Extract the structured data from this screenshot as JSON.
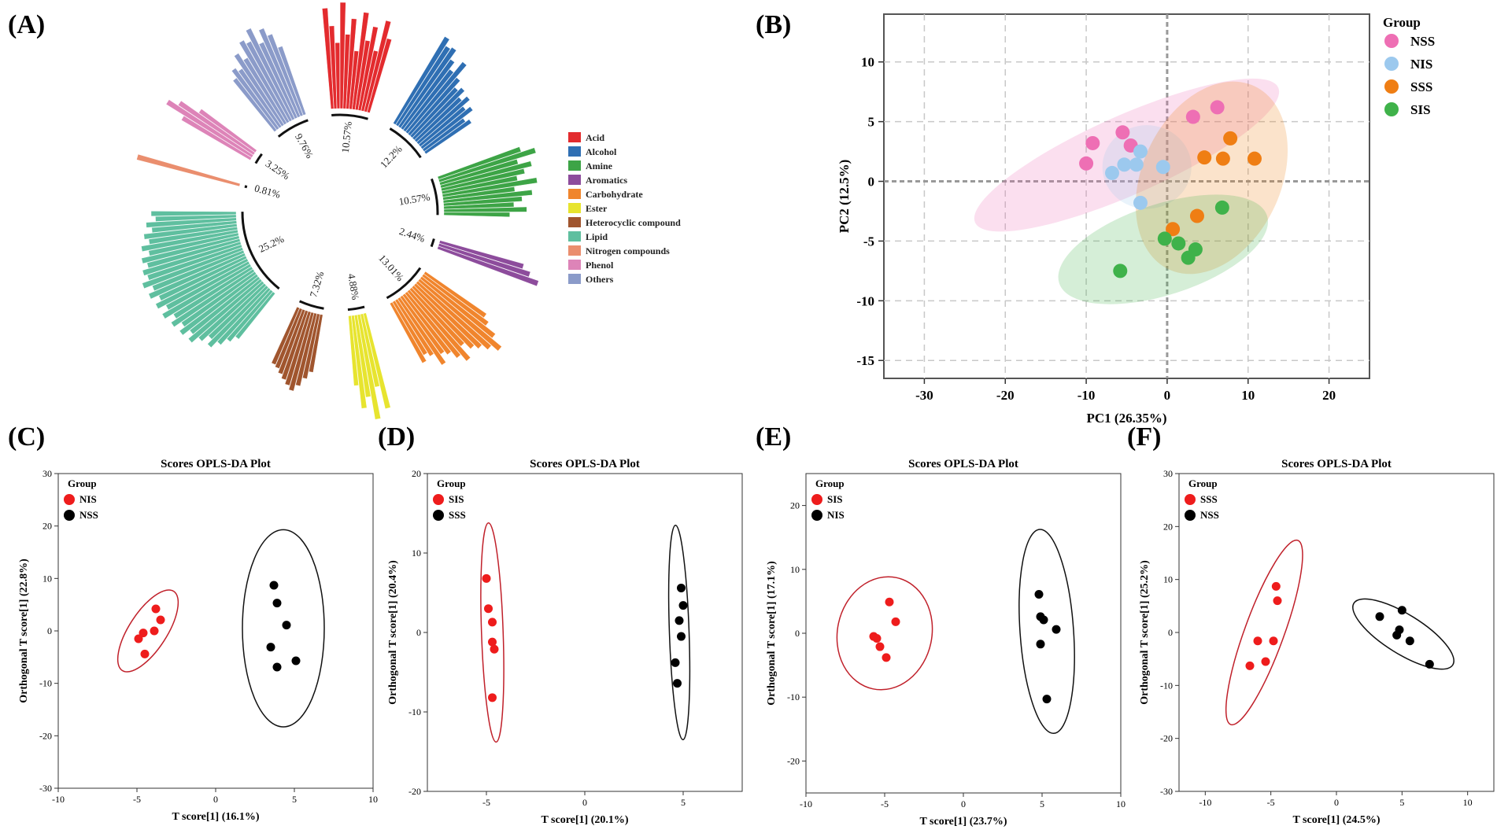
{
  "figure": {
    "panel_labels": [
      "(A)",
      "(B)",
      "(C)",
      "(D)",
      "(E)",
      "(F)"
    ]
  },
  "chart_data": [
    {
      "panel": "(A)",
      "type": "bar",
      "subtype": "circular-bar",
      "legend": [
        "Acid",
        "Alcohol",
        "Amine",
        "Aromatics",
        "Carbohydrate",
        "Ester",
        "Heterocyclic compound",
        "Lipid",
        "Nitrogen compounds",
        "Phenol",
        "Others"
      ],
      "categories": [
        {
          "name": "Acid",
          "percent": "10.57%",
          "color": "#e32b2e",
          "values": [
            0.95,
            0.78,
            0.62,
            1.0,
            0.7,
            0.85,
            0.55,
            0.92,
            0.66,
            0.8,
            0.58,
            0.88,
            0.72
          ]
        },
        {
          "name": "Alcohol",
          "percent": "12.2%",
          "color": "#2f6fb3",
          "values": [
            0.95,
            0.88,
            0.9,
            0.8,
            0.72,
            0.85,
            0.7,
            0.62,
            0.66,
            0.58,
            0.64,
            0.55,
            0.6,
            0.48,
            0.52
          ]
        },
        {
          "name": "Amine",
          "percent": "10.57%",
          "color": "#3da446",
          "values": [
            0.82,
            0.95,
            0.76,
            0.88,
            0.8,
            0.72,
            0.9,
            0.68,
            0.84,
            0.74,
            0.66,
            0.78,
            0.62
          ]
        },
        {
          "name": "Aromatics",
          "percent": "2.44%",
          "color": "#8d4c9c",
          "values": [
            0.82,
            0.9,
            1.0
          ]
        },
        {
          "name": "Carbohydrate",
          "percent": "13.01%",
          "color": "#f0852d",
          "values": [
            0.7,
            0.76,
            0.88,
            1.0,
            0.92,
            0.85,
            0.8,
            0.72,
            0.86,
            0.78,
            0.7,
            0.66,
            0.75,
            0.62,
            0.58,
            0.64
          ]
        },
        {
          "name": "Ester",
          "percent": "4.88%",
          "color": "#e7e42f",
          "values": [
            0.92,
            0.7,
            1.0,
            0.78,
            0.88,
            0.66
          ]
        },
        {
          "name": "Heterocyclic compound",
          "percent": "7.32%",
          "color": "#a0552e",
          "values": [
            0.55,
            0.62,
            0.7,
            0.76,
            0.72,
            0.68,
            0.64,
            0.6,
            0.58
          ]
        },
        {
          "name": "Lipid",
          "percent": "25.2%",
          "color": "#5fbf9f",
          "values": [
            0.55,
            0.62,
            0.7,
            0.78,
            0.72,
            0.8,
            0.88,
            0.82,
            0.9,
            0.84,
            0.92,
            0.86,
            0.95,
            0.88,
            0.96,
            0.9,
            0.98,
            0.92,
            1.0,
            0.93,
            0.96,
            0.9,
            0.94,
            0.86,
            0.92,
            0.84,
            0.88,
            0.8,
            0.85,
            0.76,
            0.8
          ]
        },
        {
          "name": "Nitrogen compounds",
          "percent": "0.81%",
          "color": "#ea8e6e",
          "values": [
            1.0
          ]
        },
        {
          "name": "Phenol",
          "percent": "3.25%",
          "color": "#dd84b8",
          "values": [
            0.75,
            0.95,
            0.85,
            0.65
          ]
        },
        {
          "name": "Others",
          "percent": "9.76%",
          "color": "#8b9bc9",
          "values": [
            0.62,
            0.7,
            0.66,
            0.8,
            0.72,
            0.88,
            0.84,
            0.95,
            0.78,
            0.9,
            0.82,
            0.68
          ]
        }
      ]
    },
    {
      "panel": "(B)",
      "type": "scatter",
      "xlabel": "PC1 (26.35%)",
      "ylabel": "PC2 (12.5%)",
      "xlim": [
        -35,
        25
      ],
      "ylim": [
        -16.5,
        14
      ],
      "xticks": [
        -30,
        -20,
        -10,
        0,
        10,
        20
      ],
      "yticks": [
        10,
        5,
        0,
        -5,
        -10,
        -15
      ],
      "legend_title": "Group",
      "series": [
        {
          "name": "NSS",
          "color": "#ee6fb4",
          "points": [
            [
              -10,
              1.5
            ],
            [
              -9.2,
              3.2
            ],
            [
              -5.5,
              4.1
            ],
            [
              -4.5,
              3.0
            ],
            [
              3.2,
              5.4
            ],
            [
              6.2,
              6.2
            ]
          ],
          "ellipse": {
            "cx": -5,
            "cy": 2.2,
            "rx": 20.5,
            "ry": 3.3,
            "angle_deg": 24
          }
        },
        {
          "name": "NIS",
          "color": "#9cc9ee",
          "points": [
            [
              -6.8,
              0.7
            ],
            [
              -5.3,
              1.4
            ],
            [
              -3.8,
              1.4
            ],
            [
              -3.3,
              2.5
            ],
            [
              -0.5,
              1.2
            ],
            [
              -3.3,
              -1.8
            ]
          ],
          "ellipse": {
            "cx": -2.5,
            "cy": 1.2,
            "rx": 5.5,
            "ry": 3.5,
            "angle_deg": 0
          }
        },
        {
          "name": "SSS",
          "color": "#ef7e14",
          "points": [
            [
              4.6,
              2.0
            ],
            [
              6.9,
              1.9
            ],
            [
              7.8,
              3.6
            ],
            [
              10.8,
              1.9
            ],
            [
              0.7,
              -4.0
            ],
            [
              3.7,
              -2.9
            ]
          ],
          "ellipse": {
            "cx": 5.5,
            "cy": 0.3,
            "rx": 12.5,
            "ry": 5.8,
            "angle_deg": 65
          }
        },
        {
          "name": "SIS",
          "color": "#3fb24a",
          "points": [
            [
              -5.8,
              -7.5
            ],
            [
              -0.3,
              -4.8
            ],
            [
              1.4,
              -5.2
            ],
            [
              3.5,
              -5.7
            ],
            [
              2.6,
              -6.4
            ],
            [
              6.8,
              -2.2
            ]
          ],
          "ellipse": {
            "cx": -0.5,
            "cy": -5.7,
            "rx": 13.5,
            "ry": 3.8,
            "angle_deg": 18
          }
        }
      ]
    },
    {
      "panel": "(C)",
      "type": "scatter",
      "title": "Scores OPLS-DA Plot",
      "xlabel": "T score[1] (16.1%)",
      "ylabel": "Orthogonal T score[1] (22.8%)",
      "xlim": [
        -10,
        10
      ],
      "ylim": [
        -30,
        30
      ],
      "xticks": [
        -10,
        -5,
        0,
        5,
        10
      ],
      "yticks": [
        30,
        20,
        10,
        0,
        -10,
        -20,
        -30
      ],
      "legend_title": "Group",
      "series": [
        {
          "name": "NIS",
          "color": "#ee1c1c",
          "points": [
            [
              -4.9,
              -1.5
            ],
            [
              -4.6,
              -0.4
            ],
            [
              -4.5,
              -4.4
            ],
            [
              -3.9,
              0.0
            ],
            [
              -3.8,
              4.2
            ],
            [
              -3.5,
              2.1
            ]
          ],
          "ellipse": {
            "cx": -4.3,
            "cy": 0.0,
            "rx": 1.2,
            "ry": 9.0,
            "angle_deg": 33
          }
        },
        {
          "name": "NSS",
          "color": "#000000",
          "points": [
            [
              3.7,
              8.7
            ],
            [
              3.9,
              5.3
            ],
            [
              4.5,
              1.1
            ],
            [
              3.5,
              -3.1
            ],
            [
              3.9,
              -6.9
            ],
            [
              5.1,
              -5.7
            ]
          ],
          "ellipse": {
            "cx": 4.3,
            "cy": 0.5,
            "rx": 2.6,
            "ry": 18.8,
            "angle_deg": 0
          }
        }
      ]
    },
    {
      "panel": "(D)",
      "type": "scatter",
      "title": "Scores OPLS-DA Plot",
      "xlabel": "T score[1] (20.1%)",
      "ylabel": "Orthogonal T score[1] (20.4%)",
      "xlim": [
        -8,
        8
      ],
      "ylim": [
        -20,
        20
      ],
      "xticks": [
        -5,
        0,
        5
      ],
      "yticks": [
        20,
        10,
        0,
        -10,
        -20
      ],
      "legend_title": "Group",
      "series": [
        {
          "name": "SIS",
          "color": "#ee1c1c",
          "points": [
            [
              -5.0,
              6.8
            ],
            [
              -4.9,
              3.0
            ],
            [
              -4.7,
              1.3
            ],
            [
              -4.7,
              -1.2
            ],
            [
              -4.6,
              -2.1
            ],
            [
              -4.7,
              -8.2
            ]
          ],
          "ellipse": {
            "cx": -4.7,
            "cy": 0.0,
            "rx": 0.55,
            "ry": 13.8,
            "angle_deg": -2
          }
        },
        {
          "name": "SSS",
          "color": "#000000",
          "points": [
            [
              4.9,
              5.6
            ],
            [
              5.0,
              3.4
            ],
            [
              4.8,
              1.5
            ],
            [
              4.9,
              -0.5
            ],
            [
              4.6,
              -3.8
            ],
            [
              4.7,
              -6.4
            ]
          ],
          "ellipse": {
            "cx": 4.8,
            "cy": 0.0,
            "rx": 0.5,
            "ry": 13.5,
            "angle_deg": -2
          }
        }
      ]
    },
    {
      "panel": "(E)",
      "type": "scatter",
      "title": "Scores OPLS-DA Plot",
      "xlabel": "T score[1] (23.7%)",
      "ylabel": "Orthogonal T score[1] (17.1%)",
      "xlim": [
        -10,
        10
      ],
      "ylim": [
        -25,
        25
      ],
      "xticks": [
        -10,
        -5,
        0,
        5,
        10
      ],
      "yticks": [
        20,
        10,
        0,
        -10,
        -20
      ],
      "legend_title": "Group",
      "series": [
        {
          "name": "SIS",
          "color": "#ee1c1c",
          "points": [
            [
              -4.7,
              4.9
            ],
            [
              -4.3,
              1.8
            ],
            [
              -5.7,
              -0.5
            ],
            [
              -5.5,
              -0.8
            ],
            [
              -5.3,
              -2.1
            ],
            [
              -4.9,
              -3.8
            ]
          ],
          "ellipse": {
            "cx": -5.0,
            "cy": 0.0,
            "rx": 3.0,
            "ry": 8.9,
            "angle_deg": 12
          }
        },
        {
          "name": "NIS",
          "color": "#000000",
          "points": [
            [
              4.8,
              6.1
            ],
            [
              4.9,
              2.6
            ],
            [
              5.1,
              2.1
            ],
            [
              5.9,
              0.6
            ],
            [
              4.9,
              -1.7
            ],
            [
              5.3,
              -10.3
            ]
          ],
          "ellipse": {
            "cx": 5.3,
            "cy": 0.3,
            "rx": 1.7,
            "ry": 16.0,
            "angle_deg": -4
          }
        }
      ]
    },
    {
      "panel": "(F)",
      "type": "scatter",
      "title": "Scores OPLS-DA Plot",
      "xlabel": "T score[1] (24.5%)",
      "ylabel": "Orthogonal T score[1] (25.2%)",
      "xlim": [
        -12,
        12
      ],
      "ylim": [
        -30,
        30
      ],
      "xticks": [
        -10,
        -5,
        0,
        5,
        10
      ],
      "yticks": [
        30,
        20,
        10,
        0,
        -10,
        -20,
        -30
      ],
      "legend_title": "Group",
      "series": [
        {
          "name": "SSS",
          "color": "#ee1c1c",
          "points": [
            [
              -4.6,
              8.7
            ],
            [
              -4.5,
              6.0
            ],
            [
              -6.0,
              -1.6
            ],
            [
              -4.8,
              -1.6
            ],
            [
              -5.4,
              -5.5
            ],
            [
              -6.6,
              -6.3
            ]
          ],
          "ellipse": {
            "cx": -5.5,
            "cy": 0.0,
            "rx": 1.5,
            "ry": 18.5,
            "angle_deg": 20
          }
        },
        {
          "name": "NSS",
          "color": "#000000",
          "points": [
            [
              3.3,
              3.0
            ],
            [
              5.0,
              4.2
            ],
            [
              4.8,
              0.5
            ],
            [
              4.6,
              -0.5
            ],
            [
              5.6,
              -1.6
            ],
            [
              7.1,
              -6.0
            ]
          ],
          "ellipse": {
            "cx": 5.1,
            "cy": -0.3,
            "rx": 1.5,
            "ry": 11.0,
            "angle_deg": -58
          }
        }
      ]
    }
  ]
}
